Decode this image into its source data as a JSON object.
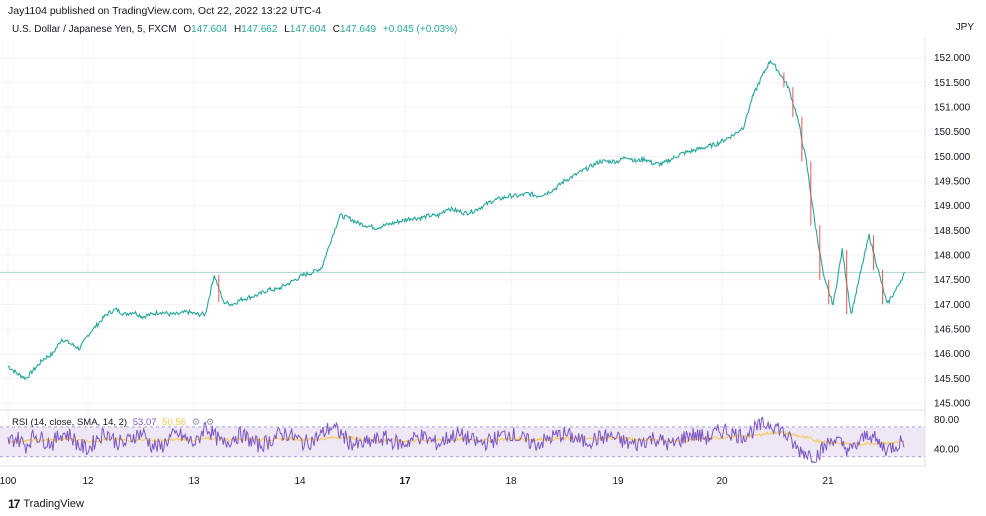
{
  "header": {
    "published": "Jay1104 published on TradingView.com, Oct 22, 2022 13:22 UTC-4",
    "symbol": "U.S. Dollar / Japanese Yen, 5, FXCM",
    "o_label": "O",
    "o": "147.604",
    "h_label": "H",
    "h": "147.662",
    "l_label": "L",
    "l": "147.604",
    "c_label": "C",
    "c": "147.649",
    "change": "+0.045 (+0.03%)",
    "currency": "JPY"
  },
  "rsi_legend": {
    "label": "RSI (14, close, SMA, 14, 2)",
    "rsi_value": "53.07",
    "sma_value": "50.56",
    "icons": [
      "gear-icon",
      "gear-icon"
    ]
  },
  "footer": {
    "logo": "TradingView"
  },
  "colors": {
    "up": "#26a69a",
    "down": "#ef5350",
    "rsi": "#7e57c2",
    "rsi_sma": "#f7c948",
    "band": "#ede7f6",
    "grid": "#f0f3fa"
  },
  "chart_data": [
    {
      "type": "line",
      "title": "U.S. Dollar / Japanese Yen, 5, FXCM",
      "ylabel": "JPY",
      "ylim": [
        144.9,
        152.4
      ],
      "y_ticks": [
        "152.000",
        "151.500",
        "151.000",
        "150.500",
        "150.000",
        "149.500",
        "149.000",
        "148.500",
        "148.000",
        "147.500",
        "147.000",
        "146.500",
        "146.000",
        "145.500",
        "145.000"
      ],
      "x_ticks": [
        "100",
        "12",
        "13",
        "14",
        "17",
        "18",
        "19",
        "20",
        "21"
      ],
      "x_tick_bold": [
        "17"
      ],
      "current_price": 147.649,
      "series": [
        {
          "x": [
            0,
            1,
            2,
            3,
            4,
            5,
            6,
            7,
            8,
            9,
            10,
            11,
            12,
            13,
            14,
            15,
            16,
            17,
            18,
            19,
            20,
            21,
            22,
            23,
            24,
            25,
            26,
            27,
            28,
            29,
            30,
            31,
            32,
            33,
            34,
            35,
            36,
            37,
            38,
            39,
            40,
            41,
            42,
            43,
            44,
            45,
            46,
            47,
            48,
            49,
            50,
            51,
            52,
            53,
            54,
            55,
            56,
            57,
            58,
            59,
            60,
            61,
            62,
            63,
            64,
            65,
            66,
            67,
            68,
            69,
            70,
            71,
            72,
            73,
            74,
            75,
            76,
            77,
            78,
            79,
            80,
            81,
            82,
            83,
            84,
            85,
            86,
            87,
            88,
            89,
            90,
            91,
            92,
            93,
            94,
            95,
            96,
            97,
            98,
            99,
            100
          ],
          "values": [
            145.75,
            145.6,
            145.5,
            145.7,
            145.9,
            146.0,
            146.3,
            146.2,
            146.1,
            146.4,
            146.6,
            146.8,
            146.9,
            146.8,
            146.85,
            146.75,
            146.8,
            146.85,
            146.8,
            146.8,
            146.85,
            146.8,
            146.8,
            147.6,
            147.05,
            147.0,
            147.1,
            147.15,
            147.2,
            147.3,
            147.3,
            147.4,
            147.5,
            147.6,
            147.65,
            147.75,
            148.3,
            148.8,
            148.75,
            148.65,
            148.6,
            148.55,
            148.6,
            148.65,
            148.7,
            148.75,
            148.75,
            148.8,
            148.8,
            148.95,
            148.9,
            148.85,
            148.9,
            149.0,
            149.1,
            149.15,
            149.2,
            149.2,
            149.25,
            149.2,
            149.25,
            149.35,
            149.5,
            149.6,
            149.7,
            149.8,
            149.9,
            149.9,
            149.9,
            150.0,
            149.9,
            149.95,
            149.85,
            149.85,
            149.95,
            150.05,
            150.1,
            150.15,
            150.2,
            150.25,
            150.35,
            150.45,
            150.6,
            151.2,
            151.6,
            151.95,
            151.7,
            151.4,
            150.8,
            149.9,
            148.6,
            147.5,
            147.0,
            148.1,
            146.8,
            147.6,
            148.4,
            147.7,
            147.0,
            147.3,
            147.649
          ]
        }
      ]
    },
    {
      "type": "line",
      "title": "RSI (14, close, SMA, 14, 2)",
      "ylim": [
        20,
        90
      ],
      "y_ticks": [
        "80.00",
        "40.00"
      ],
      "band": [
        30,
        70
      ],
      "series": [
        {
          "name": "RSI",
          "values": [
            50,
            55,
            45,
            60,
            52,
            48,
            62,
            58,
            44,
            40,
            56,
            63,
            50,
            47,
            58,
            62,
            45,
            42,
            55,
            60,
            52,
            48,
            72,
            58,
            46,
            55,
            60,
            52,
            45,
            50,
            58,
            62,
            55,
            48,
            52,
            60,
            70,
            62,
            50,
            45,
            48,
            52,
            55,
            50,
            46,
            53,
            58,
            52,
            47,
            55,
            60,
            56,
            50,
            48,
            52,
            58,
            62,
            55,
            50,
            47,
            52,
            58,
            60,
            56,
            50,
            52,
            55,
            58,
            53,
            48,
            46,
            52,
            55,
            50,
            45,
            53,
            60,
            58,
            55,
            62,
            66,
            60,
            58,
            65,
            72,
            75,
            68,
            55,
            40,
            35,
            30,
            42,
            55,
            45,
            38,
            50,
            62,
            48,
            40,
            46,
            53.07
          ]
        },
        {
          "name": "SMA",
          "values": [
            50,
            51,
            51,
            52,
            52,
            52,
            53,
            53,
            52,
            51,
            52,
            53,
            53,
            52,
            52,
            53,
            52,
            51,
            52,
            53,
            53,
            52,
            54,
            54,
            53,
            53,
            54,
            54,
            53,
            53,
            53,
            54,
            54,
            53,
            53,
            54,
            55,
            56,
            55,
            54,
            53,
            52,
            52,
            52,
            51,
            51,
            52,
            52,
            52,
            52,
            53,
            53,
            53,
            52,
            52,
            53,
            54,
            54,
            53,
            53,
            53,
            54,
            54,
            55,
            54,
            54,
            54,
            55,
            55,
            54,
            53,
            53,
            53,
            52,
            51,
            51,
            52,
            53,
            54,
            55,
            56,
            57,
            57,
            58,
            60,
            62,
            63,
            61,
            58,
            55,
            52,
            50,
            49,
            48,
            47,
            47,
            48,
            48,
            48,
            49,
            50.56
          ]
        }
      ]
    }
  ]
}
